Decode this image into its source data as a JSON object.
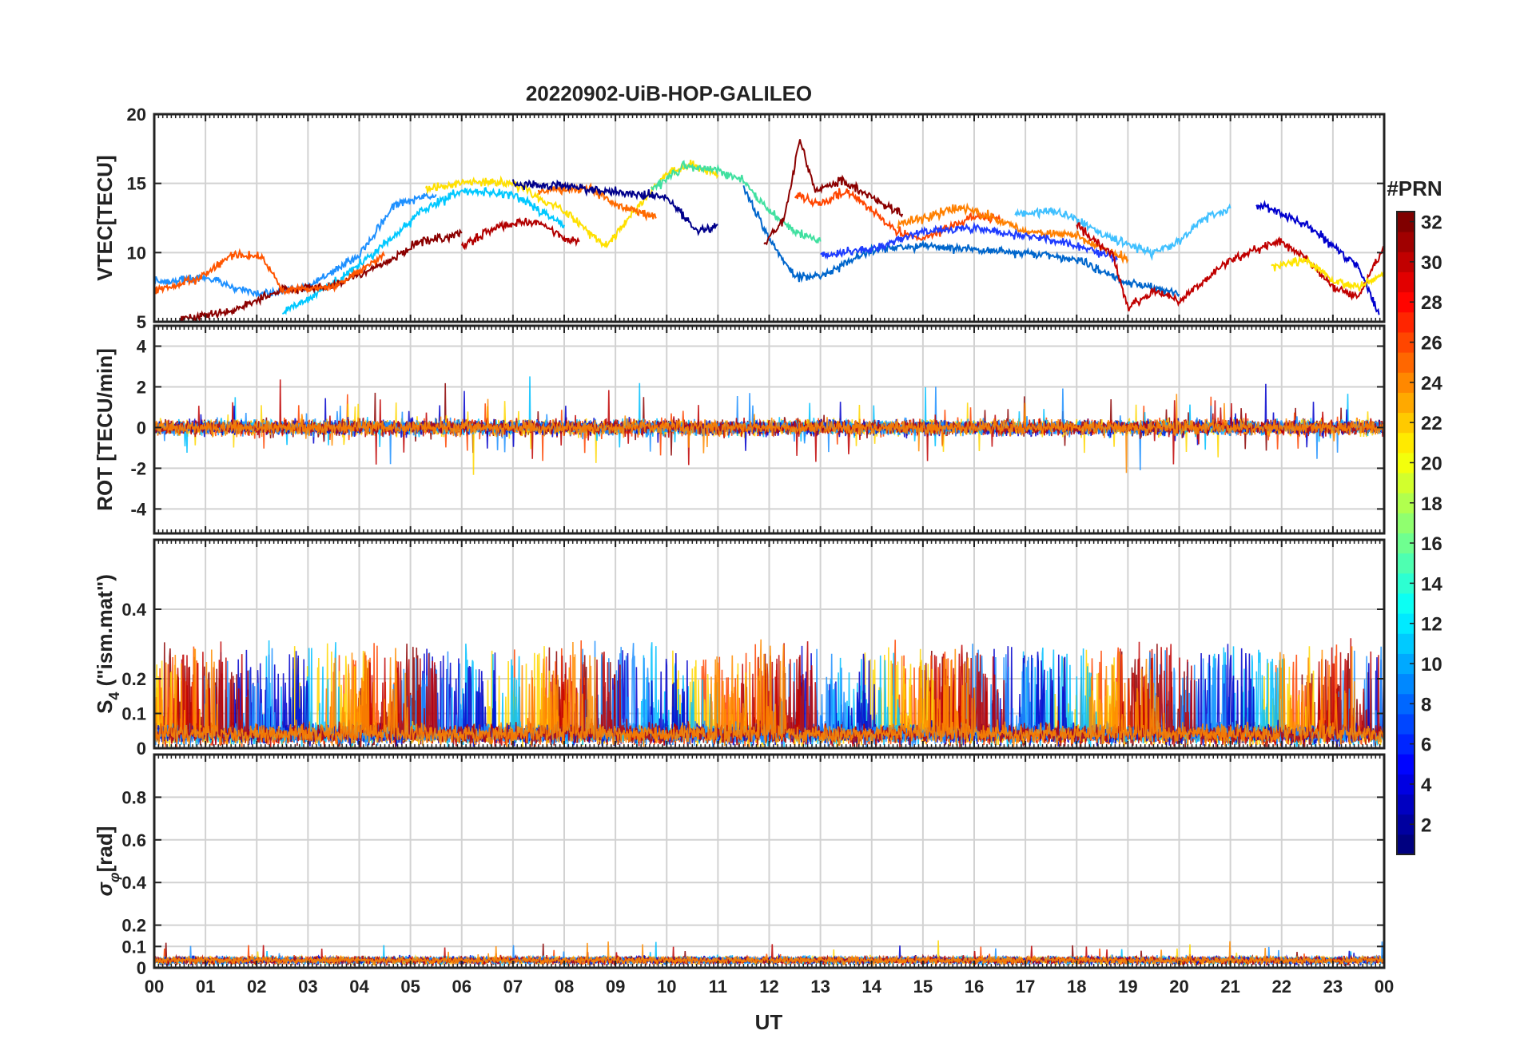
{
  "chart_data": {
    "type": "line",
    "title": "20220902-UiB-HOP-GALILEO",
    "xlabel": "UT",
    "x_tick_labels": [
      "00",
      "01",
      "02",
      "03",
      "04",
      "05",
      "06",
      "07",
      "08",
      "09",
      "10",
      "11",
      "12",
      "13",
      "14",
      "15",
      "16",
      "17",
      "18",
      "19",
      "20",
      "21",
      "22",
      "23",
      "00"
    ],
    "xlim": [
      0,
      24
    ],
    "colorbar": {
      "label": "#PRN",
      "range": [
        1,
        32
      ],
      "tick_labels": [
        "2",
        "4",
        "6",
        "8",
        "10",
        "12",
        "14",
        "16",
        "18",
        "20",
        "22",
        "24",
        "26",
        "28",
        "30",
        "32"
      ],
      "colormap": "jet"
    },
    "panels": [
      {
        "ylabel": "VTEC[TECU]",
        "ylim": [
          5,
          20
        ],
        "y_tick_labels": [
          "5",
          "10",
          "15",
          "20"
        ],
        "series": [
          {
            "color": "#00c8ff",
            "points": [
              [
                2.5,
                5.6
              ],
              [
                3.5,
                7.8
              ],
              [
                4.5,
                10.5
              ],
              [
                5.2,
                13.0
              ],
              [
                6.0,
                14.5
              ],
              [
                7.0,
                14.2
              ],
              [
                8.0,
                12.0
              ]
            ]
          },
          {
            "color": "#1e90ff",
            "points": [
              [
                0.0,
                7.8
              ],
              [
                1.0,
                8.2
              ],
              [
                2.0,
                7.0
              ],
              [
                3.0,
                7.5
              ],
              [
                4.0,
                9.8
              ],
              [
                4.7,
                13.5
              ],
              [
                5.5,
                14.2
              ]
            ]
          },
          {
            "color": "#ffe000",
            "points": [
              [
                5.3,
                14.5
              ],
              [
                6.0,
                15.1
              ],
              [
                7.0,
                15.0
              ],
              [
                8.0,
                13.0
              ],
              [
                8.8,
                10.5
              ],
              [
                9.5,
                13.5
              ],
              [
                10.0,
                15.8
              ],
              [
                10.5,
                16.4
              ],
              [
                11.0,
                15.6
              ]
            ]
          },
          {
            "color": "#8b0000",
            "points": [
              [
                0.5,
                5.2
              ],
              [
                1.5,
                5.8
              ],
              [
                2.5,
                7.3
              ],
              [
                3.5,
                7.6
              ],
              [
                4.5,
                9.2
              ],
              [
                5.2,
                10.8
              ],
              [
                6.0,
                11.4
              ]
            ]
          },
          {
            "color": "#ff5500",
            "points": [
              [
                0.0,
                7.2
              ],
              [
                0.8,
                8.0
              ],
              [
                1.5,
                9.8
              ],
              [
                2.1,
                9.7
              ],
              [
                2.5,
                7.2
              ],
              [
                3.5,
                7.5
              ],
              [
                4.5,
                9.8
              ]
            ]
          },
          {
            "color": "#b20000",
            "points": [
              [
                6.0,
                10.5
              ],
              [
                6.8,
                12.0
              ],
              [
                7.5,
                12.2
              ],
              [
                8.0,
                11.0
              ],
              [
                8.3,
                10.8
              ]
            ]
          },
          {
            "color": "#ff6a00",
            "points": [
              [
                7.5,
                14.5
              ],
              [
                8.5,
                14.6
              ],
              [
                9.0,
                13.5
              ],
              [
                9.8,
                12.5
              ]
            ]
          },
          {
            "color": "#00008b",
            "points": [
              [
                7.0,
                15.0
              ],
              [
                8.0,
                14.8
              ],
              [
                9.0,
                14.4
              ],
              [
                10.0,
                14.0
              ],
              [
                10.6,
                11.5
              ],
              [
                11.0,
                12.0
              ]
            ]
          },
          {
            "color": "#40e0a0",
            "points": [
              [
                9.7,
                14.5
              ],
              [
                10.3,
                16.2
              ],
              [
                11.0,
                16.0
              ],
              [
                11.5,
                15.2
              ],
              [
                12.0,
                13.0
              ],
              [
                12.5,
                11.5
              ],
              [
                13.0,
                10.8
              ]
            ]
          },
          {
            "color": "#0066cc",
            "points": [
              [
                11.5,
                14.8
              ],
              [
                12.0,
                11.0
              ],
              [
                12.5,
                8.2
              ],
              [
                13.0,
                8.3
              ],
              [
                14.0,
                10.2
              ],
              [
                15.0,
                10.5
              ],
              [
                16.0,
                10.2
              ],
              [
                17.0,
                10.0
              ],
              [
                18.0,
                9.5
              ],
              [
                19.0,
                7.8
              ],
              [
                20.0,
                7.0
              ]
            ]
          },
          {
            "color": "#8b0000",
            "points": [
              [
                11.9,
                10.5
              ],
              [
                12.3,
                12.5
              ],
              [
                12.6,
                18.2
              ],
              [
                12.9,
                14.5
              ],
              [
                13.4,
                15.2
              ],
              [
                14.0,
                14.0
              ],
              [
                14.6,
                12.8
              ]
            ]
          },
          {
            "color": "#ff4500",
            "points": [
              [
                12.5,
                14.2
              ],
              [
                13.0,
                13.5
              ],
              [
                13.5,
                14.5
              ],
              [
                14.0,
                13.0
              ],
              [
                14.5,
                11.5
              ],
              [
                15.0,
                11.0
              ],
              [
                16.0,
                12.6
              ],
              [
                16.5,
                12.4
              ]
            ]
          },
          {
            "color": "#ff8000",
            "points": [
              [
                14.5,
                12.0
              ],
              [
                15.0,
                12.5
              ],
              [
                15.8,
                13.3
              ],
              [
                16.3,
                12.6
              ],
              [
                17.0,
                11.5
              ],
              [
                18.0,
                11.2
              ],
              [
                19.0,
                9.5
              ]
            ]
          },
          {
            "color": "#1e3cff",
            "points": [
              [
                13.0,
                9.8
              ],
              [
                14.0,
                10.3
              ],
              [
                15.0,
                11.5
              ],
              [
                16.0,
                11.8
              ],
              [
                17.0,
                11.2
              ],
              [
                18.0,
                10.5
              ],
              [
                18.8,
                9.5
              ]
            ]
          },
          {
            "color": "#40c0ff",
            "points": [
              [
                16.8,
                12.8
              ],
              [
                17.5,
                13.0
              ],
              [
                18.0,
                12.5
              ],
              [
                18.7,
                11.0
              ],
              [
                19.5,
                10.0
              ],
              [
                20.0,
                10.8
              ],
              [
                20.5,
                12.5
              ],
              [
                21.0,
                13.2
              ]
            ]
          },
          {
            "color": "#c00000",
            "points": [
              [
                18.0,
                12.0
              ],
              [
                18.7,
                9.8
              ],
              [
                19.0,
                6.0
              ],
              [
                19.5,
                7.2
              ],
              [
                20.0,
                6.5
              ],
              [
                20.5,
                8.0
              ],
              [
                21.0,
                9.5
              ],
              [
                21.5,
                10.2
              ],
              [
                22.0,
                10.8
              ],
              [
                22.5,
                9.5
              ],
              [
                23.0,
                7.5
              ],
              [
                23.5,
                6.8
              ],
              [
                24.0,
                10.5
              ]
            ]
          },
          {
            "color": "#0000cd",
            "points": [
              [
                21.5,
                13.5
              ],
              [
                22.0,
                12.8
              ],
              [
                22.5,
                12.0
              ],
              [
                23.0,
                10.5
              ],
              [
                23.5,
                9.0
              ],
              [
                23.9,
                5.5
              ]
            ]
          },
          {
            "color": "#ffe500",
            "points": [
              [
                21.8,
                9.0
              ],
              [
                22.5,
                9.5
              ],
              [
                23.0,
                8.0
              ],
              [
                23.5,
                7.5
              ],
              [
                24.0,
                8.5
              ]
            ]
          }
        ]
      },
      {
        "ylabel": "ROT [TECU/min]",
        "ylim": [
          -5.2,
          5
        ],
        "y_tick_labels": [
          "-4",
          "-2",
          "0",
          "2",
          "4"
        ],
        "series": []
      },
      {
        "ylabel": "S4 (\"ism.mat\")",
        "ylim": [
          0,
          0.6
        ],
        "y_tick_labels": [
          "0",
          "0.1",
          "0.2",
          "0.4"
        ],
        "series": []
      },
      {
        "ylabel": "σφ[rad]",
        "ylim": [
          0,
          1
        ],
        "y_tick_labels": [
          "0",
          "0.1",
          "0.2",
          "0.4",
          "0.6",
          "0.8"
        ],
        "series": []
      }
    ]
  }
}
